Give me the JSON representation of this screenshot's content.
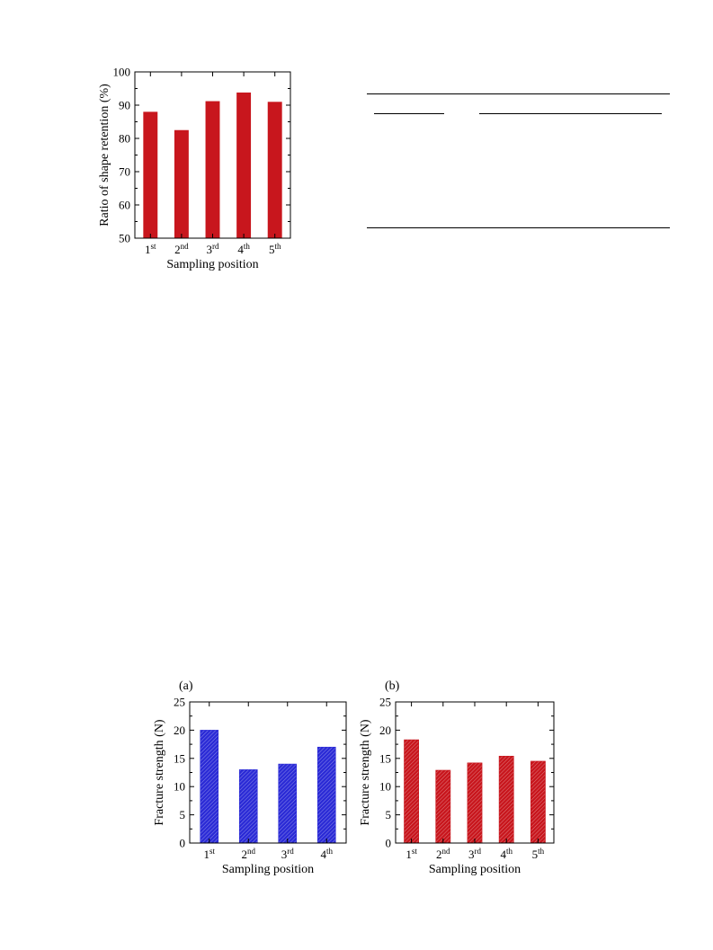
{
  "chart_data": [
    {
      "id": "shape-retention",
      "type": "bar",
      "categories": [
        "1st",
        "2nd",
        "3rd",
        "4th",
        "5th"
      ],
      "values": [
        88,
        82.5,
        91.2,
        93.8,
        91
      ],
      "ylim": [
        50,
        100
      ],
      "yticks": [
        "50",
        "60",
        "70",
        "80",
        "90",
        "100"
      ],
      "xlabel": "Sampling position",
      "ylabel": "Ratio of shape retention (%)",
      "panel_label": "",
      "color": "#c8161d",
      "hatched": false
    },
    {
      "id": "fracture-a",
      "type": "bar",
      "categories": [
        "1st",
        "2nd",
        "3rd",
        "4th"
      ],
      "values": [
        20,
        13,
        14,
        17
      ],
      "ylim": [
        0,
        25
      ],
      "yticks": [
        "0",
        "5",
        "10",
        "15",
        "20",
        "25"
      ],
      "xlabel": "Sampling position",
      "ylabel": "Fracture strength (N)",
      "panel_label": "(a)",
      "color": "#2b2bd6",
      "hatched": true
    },
    {
      "id": "fracture-b",
      "type": "bar",
      "categories": [
        "1st",
        "2nd",
        "3rd",
        "4th",
        "5th"
      ],
      "values": [
        18.3,
        12.9,
        14.2,
        15.4,
        14.5
      ],
      "ylim": [
        0,
        25
      ],
      "yticks": [
        "0",
        "5",
        "10",
        "15",
        "20",
        "25"
      ],
      "xlabel": "Sampling position",
      "ylabel": "Fracture strength (N)",
      "panel_label": "(b)",
      "color": "#c8161d",
      "hatched": true
    }
  ]
}
